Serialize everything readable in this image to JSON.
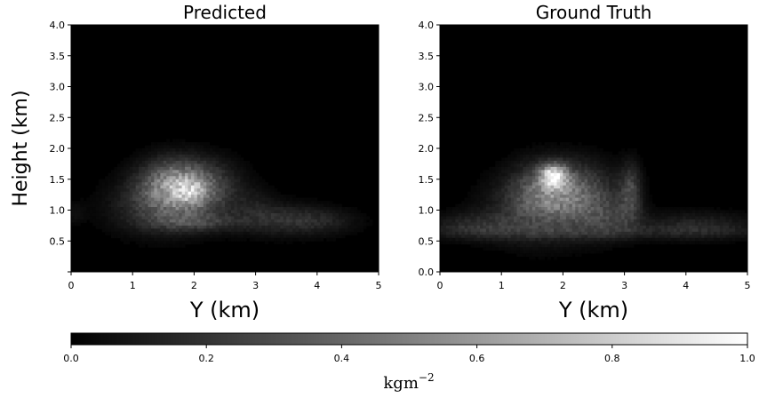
{
  "chart_data": [
    {
      "type": "heatmap",
      "title": "Predicted",
      "xlabel": "Y (km)",
      "ylabel": "Height (km)",
      "xlim": [
        0,
        5
      ],
      "ylim": [
        0,
        4
      ],
      "x_ticks": [
        "0",
        "1",
        "2",
        "3",
        "4",
        "5"
      ],
      "y_ticks": [
        "",
        "0.5",
        "1.0",
        "1.5",
        "2.0",
        "2.5",
        "3.0",
        "3.5",
        "4.0"
      ],
      "colormap": "gray",
      "blobs": [
        {
          "x": 1.7,
          "y": 1.4,
          "sx": 0.38,
          "sy": 0.28,
          "v": 0.55
        },
        {
          "x": 1.95,
          "y": 1.3,
          "sx": 0.18,
          "sy": 0.16,
          "v": 0.25
        },
        {
          "x": 1.45,
          "y": 1.05,
          "sx": 0.55,
          "sy": 0.3,
          "v": 0.2
        },
        {
          "x": 2.3,
          "y": 1.35,
          "sx": 0.35,
          "sy": 0.3,
          "v": 0.18
        },
        {
          "x": 2.0,
          "y": 0.8,
          "sx": 0.5,
          "sy": 0.1,
          "v": 0.18
        },
        {
          "x": 3.3,
          "y": 0.85,
          "sx": 0.5,
          "sy": 0.18,
          "v": 0.14
        },
        {
          "x": 4.0,
          "y": 0.82,
          "sx": 0.45,
          "sy": 0.15,
          "v": 0.12
        },
        {
          "x": 3.0,
          "y": 1.1,
          "sx": 0.25,
          "sy": 0.2,
          "v": 0.06
        },
        {
          "x": 0.05,
          "y": 0.95,
          "sx": 0.12,
          "sy": 0.12,
          "v": 0.06
        }
      ]
    },
    {
      "type": "heatmap",
      "title": "Ground Truth",
      "xlabel": "Y (km)",
      "ylabel": "",
      "xlim": [
        0,
        5
      ],
      "ylim": [
        0,
        4
      ],
      "x_ticks": [
        "0",
        "1",
        "2",
        "3",
        "4",
        "5"
      ],
      "y_ticks": [
        "0.0",
        "0.5",
        "1.0",
        "1.5",
        "2.0",
        "2.5",
        "3.0",
        "3.5",
        "4.0"
      ],
      "colormap": "gray",
      "blobs": [
        {
          "x": 1.85,
          "y": 1.55,
          "sx": 0.14,
          "sy": 0.12,
          "v": 0.75
        },
        {
          "x": 1.8,
          "y": 1.35,
          "sx": 0.4,
          "sy": 0.3,
          "v": 0.35
        },
        {
          "x": 1.6,
          "y": 1.0,
          "sx": 0.55,
          "sy": 0.35,
          "v": 0.22
        },
        {
          "x": 2.4,
          "y": 1.2,
          "sx": 0.4,
          "sy": 0.35,
          "v": 0.22
        },
        {
          "x": 3.1,
          "y": 1.3,
          "sx": 0.12,
          "sy": 0.3,
          "v": 0.25
        },
        {
          "x": 2.8,
          "y": 0.85,
          "sx": 0.35,
          "sy": 0.2,
          "v": 0.15
        },
        {
          "x": 0.6,
          "y": 0.75,
          "sx": 0.5,
          "sy": 0.15,
          "v": 0.15
        },
        {
          "x": 4.2,
          "y": 0.75,
          "sx": 0.6,
          "sy": 0.15,
          "v": 0.14
        },
        {
          "x": 2.5,
          "y": 0.65,
          "sx": 2.4,
          "sy": 0.08,
          "v": 0.08
        }
      ]
    }
  ],
  "colorbar": {
    "ticks": [
      "0.0",
      "0.2",
      "0.4",
      "0.6",
      "0.8",
      "1.0"
    ],
    "range": [
      0,
      1
    ],
    "label": "kgm",
    "label_exponent": "−2"
  }
}
